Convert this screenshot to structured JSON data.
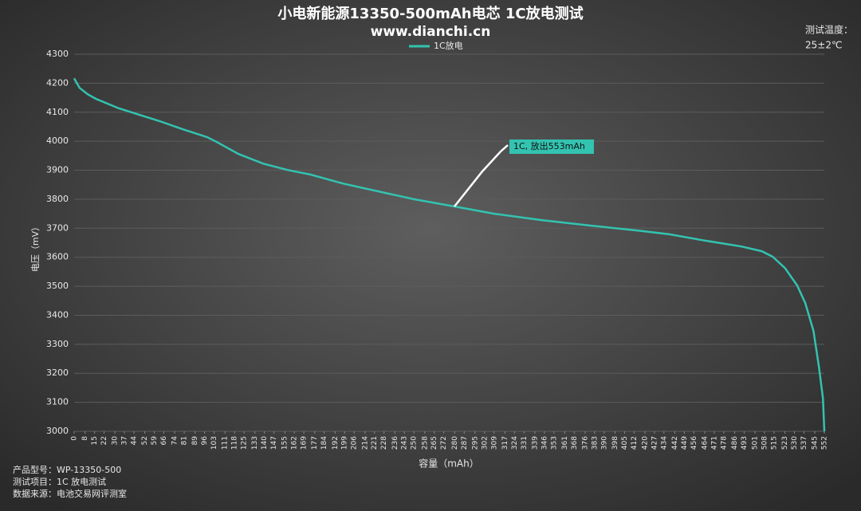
{
  "chart_data": {
    "type": "line",
    "title": "小电新能源13350-500mAh电芯 1C放电测试",
    "subtitle": "www.dianchi.cn",
    "x_label": "容量（mAh）",
    "y_label": "电压（mV）",
    "temperature": [
      "测试温度：",
      "25±2℃"
    ],
    "notes": [
      "产品型号：WP-13350-500",
      "测试项目：1C 放电测试",
      "数据来源：电池交易网评测室"
    ],
    "annotation": "1C, 放出553mAh",
    "legend": "top",
    "grid": true,
    "x": [
      0,
      4,
      10,
      16,
      33,
      63,
      80,
      98,
      105,
      121,
      139,
      157,
      174,
      198,
      221,
      250,
      280,
      309,
      344,
      380,
      415,
      438,
      462,
      491,
      506,
      514,
      523,
      532,
      538,
      544,
      548,
      551,
      552
    ],
    "series": [
      {
        "name": "1C放电",
        "color": "#33c3b0",
        "values": [
          4217,
          4184,
          4162,
          4146,
          4113,
          4069,
          4041,
          4014,
          3997,
          3956,
          3923,
          3901,
          3885,
          3854,
          3830,
          3800,
          3775,
          3750,
          3728,
          3709,
          3692,
          3679,
          3659,
          3637,
          3621,
          3602,
          3563,
          3503,
          3442,
          3346,
          3223,
          3113,
          3000
        ]
      }
    ],
    "xlim": [
      0,
      552
    ],
    "xticks": [
      0,
      8,
      15,
      22,
      30,
      37,
      44,
      52,
      59,
      66,
      74,
      81,
      89,
      96,
      103,
      111,
      118,
      125,
      133,
      140,
      147,
      155,
      162,
      169,
      177,
      184,
      192,
      199,
      206,
      214,
      221,
      228,
      236,
      243,
      250,
      258,
      265,
      272,
      280,
      287,
      295,
      302,
      309,
      317,
      324,
      331,
      339,
      346,
      353,
      361,
      368,
      376,
      383,
      390,
      398,
      405,
      412,
      420,
      427,
      434,
      442,
      449,
      456,
      464,
      471,
      478,
      486,
      493,
      501,
      508,
      515,
      523,
      530,
      537,
      545,
      552
    ],
    "ylim": [
      3000,
      4300
    ],
    "yticks": [
      3000,
      3100,
      3200,
      3300,
      3400,
      3500,
      3600,
      3700,
      3800,
      3900,
      4000,
      4100,
      4200,
      4300
    ]
  }
}
